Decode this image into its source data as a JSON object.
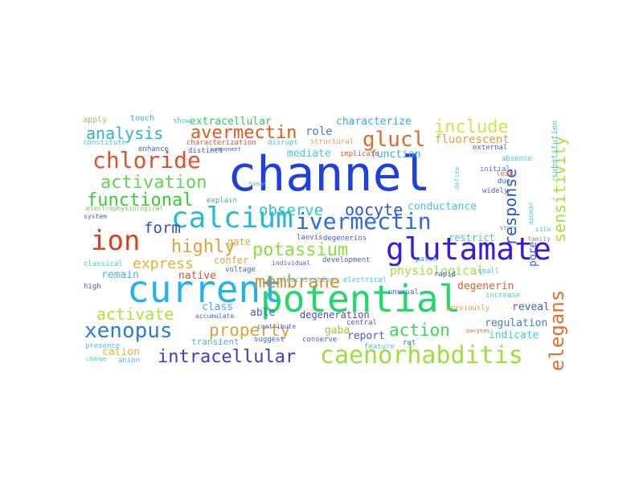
{
  "words": [
    {
      "text": "channel",
      "color": "#1f3fe0"
    },
    {
      "text": "potential",
      "color": "#22d86a"
    },
    {
      "text": "current",
      "color": "#22b2f0"
    },
    {
      "text": "glutamate",
      "color": "#3a1ad8"
    },
    {
      "text": "calcium",
      "color": "#26b8d8"
    },
    {
      "text": "ion",
      "color": "#d8401f"
    },
    {
      "text": "chloride",
      "color": "#e0502a"
    },
    {
      "text": "caenorhabditis",
      "color": "#9ae03a"
    },
    {
      "text": "ivermectin",
      "color": "#2a6be0"
    },
    {
      "text": "intracellular",
      "color": "#3a3ad8"
    },
    {
      "text": "xenopus",
      "color": "#2a7ae0"
    },
    {
      "text": "activation",
      "color": "#5ad850"
    },
    {
      "text": "functional",
      "color": "#3ac83a"
    },
    {
      "text": "analysis",
      "color": "#2ab0d8"
    },
    {
      "text": "avermectin",
      "color": "#d85a1f"
    },
    {
      "text": "glucl",
      "color": "#e06a2a"
    },
    {
      "text": "include",
      "color": "#d8e04a"
    },
    {
      "text": "response",
      "color": "#2a58d8"
    },
    {
      "text": "sensitivity",
      "color": "#a8e03a"
    },
    {
      "text": "elegans",
      "color": "#e0702a"
    },
    {
      "text": "observe",
      "color": "#2ac0d8"
    },
    {
      "text": "oocyte",
      "color": "#2a58d8"
    },
    {
      "text": "form",
      "color": "#2a50c8"
    },
    {
      "text": "highly",
      "color": "#e0a03a"
    },
    {
      "text": "potassium",
      "color": "#8ae03a"
    },
    {
      "text": "express",
      "color": "#e0b03a"
    },
    {
      "text": "membrane",
      "color": "#e08a2a"
    },
    {
      "text": "activate",
      "color": "#b0e03a"
    },
    {
      "text": "property",
      "color": "#e0a03a"
    },
    {
      "text": "action",
      "color": "#3ad858"
    },
    {
      "text": "physiological",
      "color": "#a0e040"
    },
    {
      "text": "extracellular",
      "color": "#30c860"
    },
    {
      "text": "characterize",
      "color": "#30b0d0"
    },
    {
      "text": "fluorescent",
      "color": "#e0a03a"
    },
    {
      "text": "conductance",
      "color": "#40c8d0"
    },
    {
      "text": "mediate",
      "color": "#40c8e0"
    },
    {
      "text": "function",
      "color": "#40a8e0"
    },
    {
      "text": "role",
      "color": "#4080d0"
    },
    {
      "text": "pore",
      "color": "#4060d0"
    },
    {
      "text": "native",
      "color": "#e05030"
    },
    {
      "text": "remain",
      "color": "#50b0e0"
    },
    {
      "text": "cation",
      "color": "#e0b040"
    },
    {
      "text": "regulation",
      "color": "#4080d0"
    },
    {
      "text": "indicate",
      "color": "#40c8e0"
    },
    {
      "text": "reveal",
      "color": "#4060d0"
    },
    {
      "text": "degeneration",
      "color": "#4050c0"
    },
    {
      "text": "degenerin",
      "color": "#e06030"
    },
    {
      "text": "report",
      "color": "#4060d0"
    },
    {
      "text": "class",
      "color": "#40a8e0"
    },
    {
      "text": "able",
      "color": "#4060d0"
    },
    {
      "text": "gaba",
      "color": "#a0c840"
    },
    {
      "text": "restrict",
      "color": "#40c8d0"
    },
    {
      "text": "gate",
      "color": "#e0a040"
    },
    {
      "text": "confer",
      "color": "#e0a040"
    },
    {
      "text": "transient",
      "color": "#50b0d0"
    },
    {
      "text": "substitution",
      "color": "#40c8d0"
    },
    {
      "text": "touch",
      "color": "#40a8e0"
    },
    {
      "text": "apply",
      "color": "#80d050"
    },
    {
      "text": "show",
      "color": "#40c8d0"
    },
    {
      "text": "constitute",
      "color": "#40c8d0"
    },
    {
      "text": "enhance",
      "color": "#4060d0"
    },
    {
      "text": "distinct",
      "color": "#4060d0"
    },
    {
      "text": "explain",
      "color": "#40a0d0"
    },
    {
      "text": "electrophysiological",
      "color": "#80c050"
    },
    {
      "text": "human",
      "color": "#80a8d0"
    },
    {
      "text": "define",
      "color": "#60c8d0"
    },
    {
      "text": "initial",
      "color": "#4080d0"
    },
    {
      "text": "lead",
      "color": "#e07040"
    },
    {
      "text": "due",
      "color": "#4060d0"
    },
    {
      "text": "widely",
      "color": "#4060d0"
    },
    {
      "text": "external",
      "color": "#4060d0"
    },
    {
      "text": "absence",
      "color": "#40c8d0"
    },
    {
      "text": "appear",
      "color": "#40c8d0"
    },
    {
      "text": "family",
      "color": "#80a0c0"
    },
    {
      "text": "site",
      "color": "#40c8d0"
    },
    {
      "text": "store",
      "color": "#4080d0"
    },
    {
      "text": "patch",
      "color": "#40a0d0"
    },
    {
      "text": "laevis",
      "color": "#4060d0"
    },
    {
      "text": "degenerins",
      "color": "#4060d0"
    },
    {
      "text": "development",
      "color": "#4060d0"
    },
    {
      "text": "individual",
      "color": "#4060d0"
    },
    {
      "text": "electrical",
      "color": "#40c8e0"
    },
    {
      "text": "inactivation",
      "color": "#40c8e0"
    },
    {
      "text": "voltage",
      "color": "#4060d0"
    },
    {
      "text": "high",
      "color": "#4060d0"
    },
    {
      "text": "system",
      "color": "#4060d0"
    },
    {
      "text": "classical",
      "color": "#40c8d0"
    },
    {
      "text": "increase",
      "color": "#40c8d0"
    },
    {
      "text": "unusual",
      "color": "#4060d0"
    },
    {
      "text": "previously",
      "color": "#e0a040"
    },
    {
      "text": "central",
      "color": "#4060d0"
    },
    {
      "text": "conserve",
      "color": "#4060d0"
    },
    {
      "text": "feature",
      "color": "#40c8d0"
    },
    {
      "text": "rat",
      "color": "#4060d0"
    },
    {
      "text": "suggest",
      "color": "#4060d0"
    },
    {
      "text": "accumulate",
      "color": "#4060d0"
    },
    {
      "text": "contribute",
      "color": "#4060d0"
    },
    {
      "text": "rapid",
      "color": "#4060d0"
    },
    {
      "text": "small",
      "color": "#40c8d0"
    },
    {
      "text": "characterization",
      "color": "#e05030"
    },
    {
      "text": "disrupt",
      "color": "#40c8d0"
    },
    {
      "text": "structural",
      "color": "#e0a040"
    },
    {
      "text": "implicate",
      "color": "#e05030"
    },
    {
      "text": "component",
      "color": "#4060d0"
    },
    {
      "text": "oocytes",
      "color": "#e06030"
    },
    {
      "text": "presence",
      "color": "#40c8d0"
    },
    {
      "text": "anion",
      "color": "#40c8d0"
    },
    {
      "text": "change",
      "color": "#40c8d0"
    }
  ]
}
